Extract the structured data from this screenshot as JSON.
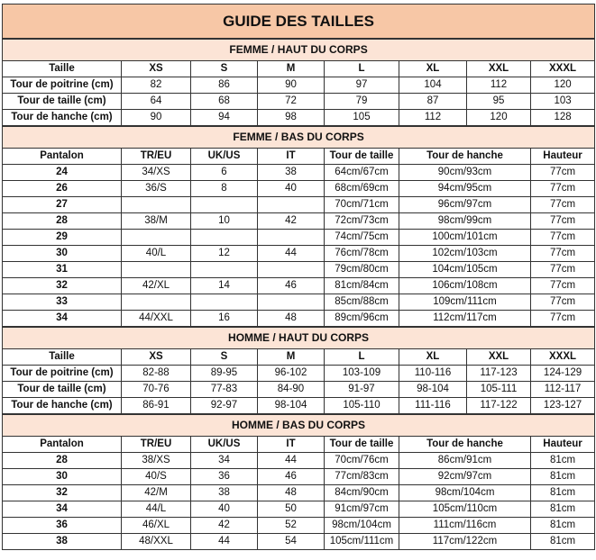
{
  "title": "GUIDE DES TAILLES",
  "colors": {
    "title_bg": "#f7c7a6",
    "section_bg": "#fce4d6"
  },
  "sections": [
    {
      "kind": "top",
      "heading": "FEMME / HAUT DU CORPS",
      "header": [
        "Taille",
        "XS",
        "S",
        "M",
        "L",
        "XL",
        "XXL",
        "XXXL"
      ],
      "rows": [
        [
          "Tour de poitrine (cm)",
          "82",
          "86",
          "90",
          "97",
          "104",
          "112",
          "120"
        ],
        [
          "Tour de taille (cm)",
          "64",
          "68",
          "72",
          "79",
          "87",
          "95",
          "103"
        ],
        [
          "Tour de hanche (cm)",
          "90",
          "94",
          "98",
          "105",
          "112",
          "120",
          "128"
        ]
      ]
    },
    {
      "kind": "bottom",
      "heading": "FEMME / BAS DU CORPS",
      "header": [
        "Pantalon",
        "TR/EU",
        "UK/US",
        "IT",
        "Tour de taille",
        "Tour de hanche",
        "Hauteur"
      ],
      "rows": [
        [
          "24",
          "34/XS",
          "6",
          "38",
          "64cm/67cm",
          "90cm/93cm",
          "77cm"
        ],
        [
          "26",
          "36/S",
          "8",
          "40",
          "68cm/69cm",
          "94cm/95cm",
          "77cm"
        ],
        [
          "27",
          "",
          "",
          "",
          "70cm/71cm",
          "96cm/97cm",
          "77cm"
        ],
        [
          "28",
          "38/M",
          "10",
          "42",
          "72cm/73cm",
          "98cm/99cm",
          "77cm"
        ],
        [
          "29",
          "",
          "",
          "",
          "74cm/75cm",
          "100cm/101cm",
          "77cm"
        ],
        [
          "30",
          "40/L",
          "12",
          "44",
          "76cm/78cm",
          "102cm/103cm",
          "77cm"
        ],
        [
          "31",
          "",
          "",
          "",
          "79cm/80cm",
          "104cm/105cm",
          "77cm"
        ],
        [
          "32",
          "42/XL",
          "14",
          "46",
          "81cm/84cm",
          "106cm/108cm",
          "77cm"
        ],
        [
          "33",
          "",
          "",
          "",
          "85cm/88cm",
          "109cm/111cm",
          "77cm"
        ],
        [
          "34",
          "44/XXL",
          "16",
          "48",
          "89cm/96cm",
          "112cm/117cm",
          "77cm"
        ]
      ]
    },
    {
      "kind": "top",
      "heading": "HOMME / HAUT DU CORPS",
      "header": [
        "Taille",
        "XS",
        "S",
        "M",
        "L",
        "XL",
        "XXL",
        "XXXL"
      ],
      "rows": [
        [
          "Tour de poitrine (cm)",
          "82-88",
          "89-95",
          "96-102",
          "103-109",
          "110-116",
          "117-123",
          "124-129"
        ],
        [
          "Tour de taille (cm)",
          "70-76",
          "77-83",
          "84-90",
          "91-97",
          "98-104",
          "105-111",
          "112-117"
        ],
        [
          "Tour de hanche (cm)",
          "86-91",
          "92-97",
          "98-104",
          "105-110",
          "111-116",
          "117-122",
          "123-127"
        ]
      ]
    },
    {
      "kind": "bottom",
      "heading": "HOMME / BAS DU CORPS",
      "header": [
        "Pantalon",
        "TR/EU",
        "UK/US",
        "IT",
        "Tour de taille",
        "Tour de hanche",
        "Hauteur"
      ],
      "rows": [
        [
          "28",
          "38/XS",
          "34",
          "44",
          "70cm/76cm",
          "86cm/91cm",
          "81cm"
        ],
        [
          "30",
          "40/S",
          "36",
          "46",
          "77cm/83cm",
          "92cm/97cm",
          "81cm"
        ],
        [
          "32",
          "42/M",
          "38",
          "48",
          "84cm/90cm",
          "98cm/104cm",
          "81cm"
        ],
        [
          "34",
          "44/L",
          "40",
          "50",
          "91cm/97cm",
          "105cm/110cm",
          "81cm"
        ],
        [
          "36",
          "46/XL",
          "42",
          "52",
          "98cm/104cm",
          "111cm/116cm",
          "81cm"
        ],
        [
          "38",
          "48/XXL",
          "44",
          "54",
          "105cm/111cm",
          "117cm/122cm",
          "81cm"
        ]
      ]
    }
  ]
}
